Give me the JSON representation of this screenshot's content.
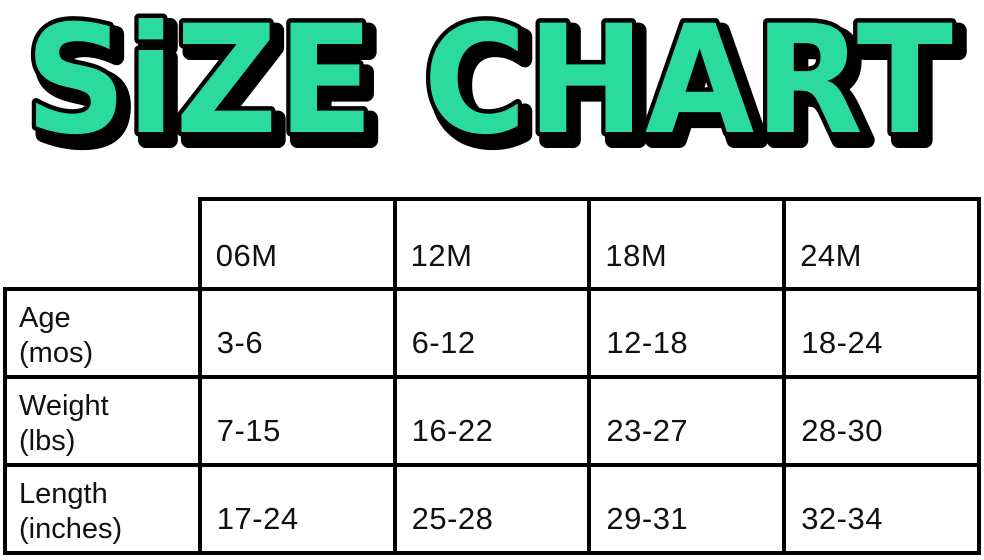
{
  "title": {
    "text": "SiZE CHART",
    "fill": "#2BDB9D",
    "outline": "#000000"
  },
  "table": {
    "columns": [
      "06M",
      "12M",
      "18M",
      "24M"
    ],
    "rows": [
      {
        "label": "Age",
        "unit": "(mos)",
        "values": [
          "3-6",
          "6-12",
          "12-18",
          "18-24"
        ]
      },
      {
        "label": "Weight",
        "unit": "(lbs)",
        "values": [
          "7-15",
          "16-22",
          "23-27",
          "28-30"
        ]
      },
      {
        "label": "Length",
        "unit": "(inches)",
        "values": [
          "17-24",
          "25-28",
          "29-31",
          "32-34"
        ]
      }
    ]
  },
  "chart_data": {
    "type": "table",
    "title": "SiZE CHART",
    "columns": [
      "",
      "06M",
      "12M",
      "18M",
      "24M"
    ],
    "rows": [
      [
        "Age (mos)",
        "3-6",
        "6-12",
        "12-18",
        "18-24"
      ],
      [
        "Weight (lbs)",
        "7-15",
        "16-22",
        "23-27",
        "28-30"
      ],
      [
        "Length (inches)",
        "17-24",
        "25-28",
        "29-31",
        "32-34"
      ]
    ],
    "layout": {
      "grid": true,
      "header_row_position": "top",
      "label_column_position": "left",
      "corner_cell_empty": true
    },
    "colors": {
      "title_fill": "#2BDB9D",
      "title_outline": "#000000",
      "table_border": "#000000",
      "background": "#ffffff"
    }
  }
}
